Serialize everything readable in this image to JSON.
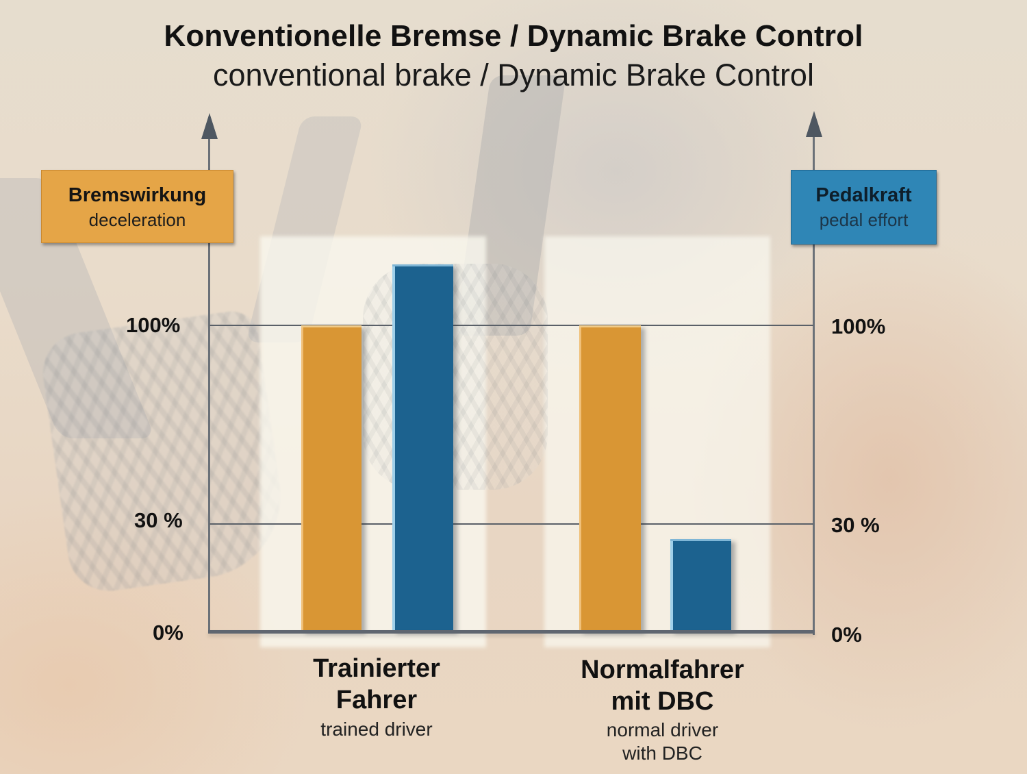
{
  "title": {
    "main": "Konventionelle Bremse / Dynamic Brake Control",
    "sub": "conventional brake / Dynamic Brake Control"
  },
  "axes": {
    "left": {
      "label_de": "Bremswirkung",
      "label_en": "deceleration",
      "color": "#e5a547",
      "ticks": [
        "100%",
        "30 %",
        "0%"
      ]
    },
    "right": {
      "label_de": "Pedalkraft",
      "label_en": "pedal effort",
      "color": "#2f86b6",
      "ticks": [
        "100%",
        "30 %",
        "0%"
      ]
    }
  },
  "categories": [
    {
      "label_de_line1": "Trainierter",
      "label_de_line2": "Fahrer",
      "label_en_line1": "trained driver",
      "label_en_line2": ""
    },
    {
      "label_de_line1": "Normalfahrer",
      "label_de_line2": "mit DBC",
      "label_en_line1": "normal driver",
      "label_en_line2": "with DBC"
    }
  ],
  "chart_data": {
    "type": "bar",
    "title": "Konventionelle Bremse / Dynamic Brake Control",
    "subtitle": "conventional brake / Dynamic Brake Control",
    "categories": [
      "Trainierter Fahrer (trained driver)",
      "Normalfahrer mit DBC (normal driver with DBC)"
    ],
    "series": [
      {
        "name": "Bremswirkung (deceleration)",
        "axis": "left",
        "color": "#d99634",
        "values": [
          100,
          100
        ]
      },
      {
        "name": "Pedalkraft (pedal effort)",
        "axis": "right",
        "color": "#1c628f",
        "values": [
          120,
          30
        ]
      }
    ],
    "ylabel_left": "Bremswirkung / deceleration",
    "ylabel_right": "Pedalkraft / pedal effort",
    "yticks": [
      0,
      30,
      100
    ],
    "ytick_labels": [
      "0%",
      "30 %",
      "100%"
    ],
    "ylim": [
      0,
      130
    ],
    "grid": true,
    "legend_position": "axis label boxes (left: orange, right: blue)"
  }
}
